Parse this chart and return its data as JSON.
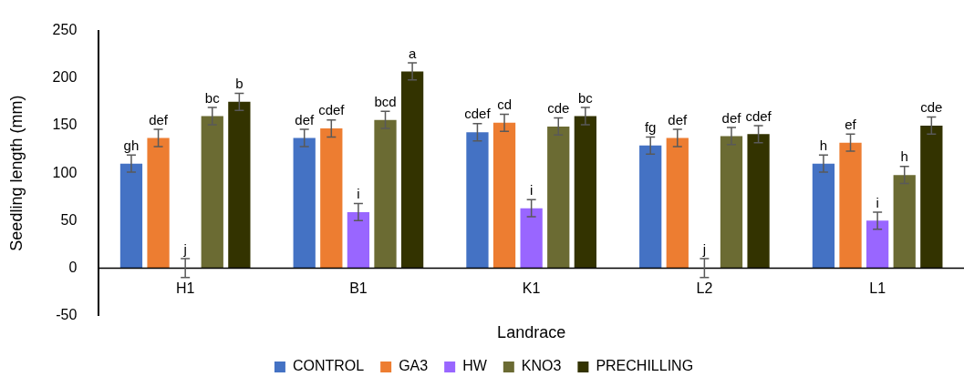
{
  "chart_data": {
    "type": "bar",
    "xlabel": "Landrace",
    "ylabel": "Seedling length (mm)",
    "categories": [
      "H1",
      "B1",
      "K1",
      "L2",
      "L1"
    ],
    "ylim": [
      -50,
      250
    ],
    "yticks": [
      -50,
      0,
      50,
      100,
      150,
      200,
      250
    ],
    "grid": false,
    "legend": "bottom",
    "series": [
      {
        "name": "CONTROL",
        "color": "#4472c4",
        "values": [
          110,
          137,
          143,
          129,
          110
        ],
        "errors": [
          9,
          9,
          9,
          9,
          9
        ],
        "value_labels": [
          "gh",
          "def",
          "cdef",
          "fg",
          "h"
        ]
      },
      {
        "name": "GA3",
        "color": "#ed7d31",
        "values": [
          137,
          147,
          153,
          137,
          132
        ],
        "errors": [
          9,
          9,
          9,
          9,
          9
        ],
        "value_labels": [
          "def",
          "cdef",
          "cd",
          "def",
          "ef"
        ]
      },
      {
        "name": "HW",
        "color": "#9966ff",
        "values": [
          0,
          59,
          63,
          0,
          50
        ],
        "errors": [
          10,
          9,
          9,
          10,
          9
        ],
        "value_labels": [
          "j",
          "i",
          "i",
          "j",
          "i"
        ]
      },
      {
        "name": "KNO3",
        "color": "#6b6b33",
        "values": [
          160,
          156,
          149,
          139,
          98
        ],
        "errors": [
          9,
          9,
          9,
          9,
          9
        ],
        "value_labels": [
          "bc",
          "bcd",
          "cde",
          "def",
          "h"
        ]
      },
      {
        "name": "PRECHILLING",
        "color": "#333300",
        "values": [
          175,
          207,
          160,
          141,
          150
        ],
        "errors": [
          9,
          9,
          9,
          9,
          9
        ],
        "value_labels": [
          "b",
          "a",
          "bc",
          "cdef",
          "cde"
        ]
      }
    ]
  }
}
